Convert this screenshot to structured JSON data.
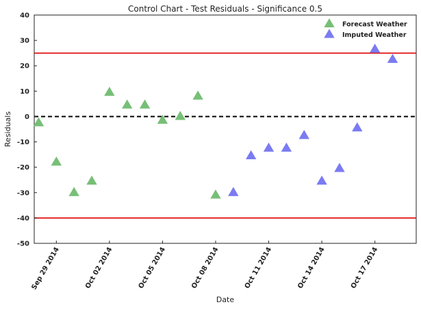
{
  "chart_data": {
    "type": "scatter",
    "title": "Control Chart - Test Residuals - Significance 0.5",
    "xlabel": "Date",
    "ylabel": "Residuals",
    "ylim": [
      -50,
      40
    ],
    "xlim": [
      "2014-09-27T18:00",
      "2014-10-19T08:00"
    ],
    "x_tick_labels": [
      "Sep 29 2014",
      "Oct 02 2014",
      "Oct 05 2014",
      "Oct 08 2014",
      "Oct 11 2014",
      "Oct 14 2014",
      "Oct 17 2014"
    ],
    "x_tick_dates": [
      "2014-09-29",
      "2014-10-02",
      "2014-10-05",
      "2014-10-08",
      "2014-10-11",
      "2014-10-14",
      "2014-10-17"
    ],
    "y_ticks": [
      -50,
      -40,
      -30,
      -20,
      -10,
      0,
      10,
      20,
      30,
      40
    ],
    "grid": false,
    "legend_position": "top-right",
    "control_limits": {
      "upper": 25,
      "lower": -40,
      "center": 0
    },
    "colors": {
      "upper_limit": "#dd0000",
      "lower_limit": "#dd0000",
      "center_line": "#000000"
    },
    "series": [
      {
        "name": "Forecast Weather",
        "color": "#77bf77",
        "marker": "triangle",
        "x": [
          "2014-09-28",
          "2014-09-29",
          "2014-09-30",
          "2014-10-01",
          "2014-10-02",
          "2014-10-03",
          "2014-10-04",
          "2014-10-05",
          "2014-10-06",
          "2014-10-07",
          "2014-10-08"
        ],
        "y": [
          -2.5,
          -18,
          -30,
          -25.5,
          9.5,
          4.5,
          4.5,
          -1.5,
          0,
          8,
          -31
        ]
      },
      {
        "name": "Imputed Weather",
        "color": "#7b7bf2",
        "marker": "triangle",
        "x": [
          "2014-10-09",
          "2014-10-10",
          "2014-10-11",
          "2014-10-12",
          "2014-10-13",
          "2014-10-14",
          "2014-10-15",
          "2014-10-16",
          "2014-10-17",
          "2014-10-18"
        ],
        "y": [
          -30,
          -15.5,
          -12.5,
          -12.5,
          -7.5,
          -25.5,
          -20.5,
          -4.5,
          26.5,
          22.5
        ]
      }
    ]
  }
}
